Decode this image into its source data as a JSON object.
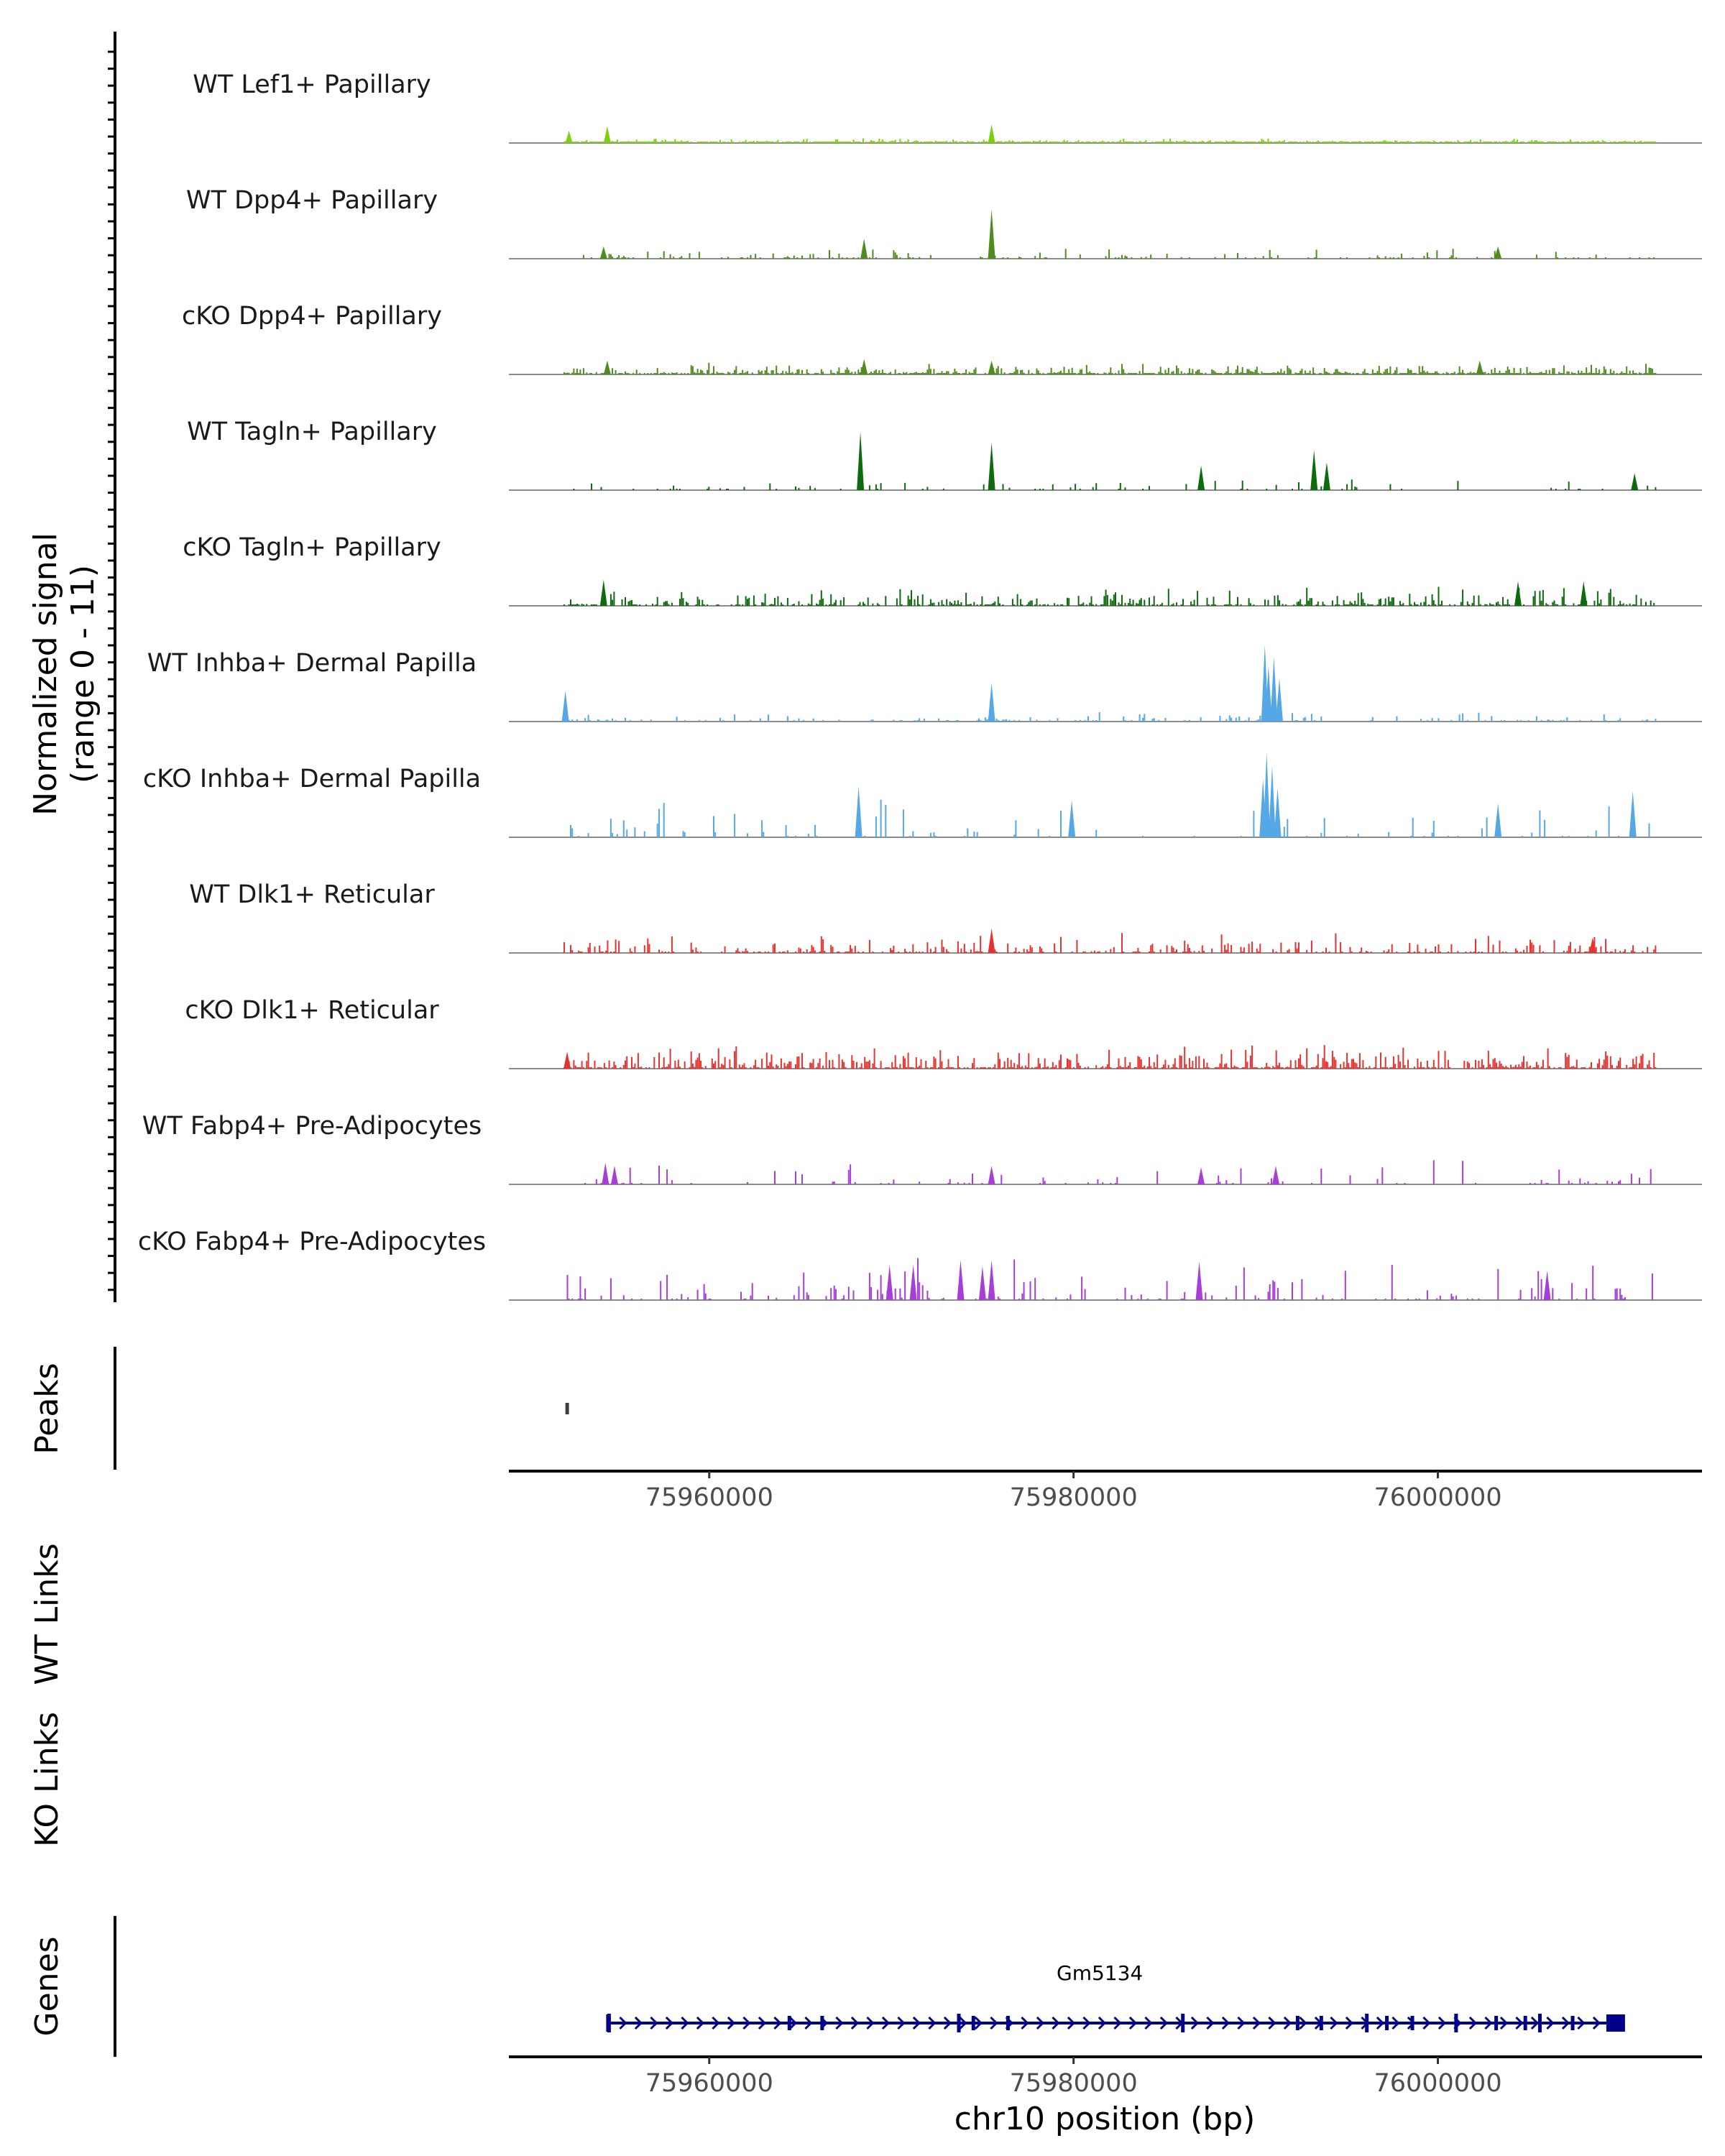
{
  "chart_data": {
    "type": "coverage",
    "title": "",
    "ylabel": "Normalized signal",
    "ylabel_range": "(range 0 - 11)",
    "y_range": [
      0,
      11
    ],
    "chromosome": "chr10",
    "xlabel": "chr10 position (bp)",
    "xlim": [
      75949000,
      76014500
    ],
    "region_start": 75952000,
    "region_end": 76012000,
    "x_ticks": [
      75960000,
      75980000,
      76000000
    ],
    "x_tick_labels": [
      "75960000",
      "75980000",
      "76000000"
    ],
    "tracks": [
      {
        "name": "WT Lef1+ Papillary",
        "color": "#7cd10f",
        "seed": 11,
        "density": 0.8,
        "scale": 0.1,
        "peaks": [
          {
            "x": 75952300,
            "v": 0.8
          },
          {
            "x": 75954400,
            "v": 1.1
          },
          {
            "x": 75975500,
            "v": 1.2
          }
        ]
      },
      {
        "name": "WT Dpp4+ Papillary",
        "color": "#4e8c1e",
        "seed": 23,
        "density": 0.18,
        "scale": 0.25,
        "peaks": [
          {
            "x": 75975500,
            "v": 3.2
          },
          {
            "x": 75968500,
            "v": 1.3
          },
          {
            "x": 75954200,
            "v": 0.8
          },
          {
            "x": 76003300,
            "v": 0.8
          }
        ]
      },
      {
        "name": "cKO Dpp4+ Papillary",
        "color": "#4e8c1e",
        "seed": 37,
        "density": 0.75,
        "scale": 0.25,
        "peaks": [
          {
            "x": 75954400,
            "v": 0.9
          },
          {
            "x": 75968500,
            "v": 1.0
          },
          {
            "x": 75975500,
            "v": 0.9
          },
          {
            "x": 76002300,
            "v": 0.9
          }
        ]
      },
      {
        "name": "WT Tagln+ Papillary",
        "color": "#0d6b0d",
        "seed": 41,
        "density": 0.12,
        "scale": 0.25,
        "peaks": [
          {
            "x": 75968300,
            "v": 3.8
          },
          {
            "x": 75975500,
            "v": 3.1
          },
          {
            "x": 75993200,
            "v": 2.6
          },
          {
            "x": 75987000,
            "v": 1.6
          },
          {
            "x": 75993900,
            "v": 1.8
          },
          {
            "x": 76010800,
            "v": 1.1
          }
        ]
      },
      {
        "name": "cKO Tagln+ Papillary",
        "color": "#0d6b0d",
        "seed": 53,
        "density": 0.5,
        "scale": 0.4,
        "peaks": [
          {
            "x": 75954200,
            "v": 1.7
          },
          {
            "x": 76008000,
            "v": 1.6
          },
          {
            "x": 76004400,
            "v": 1.6
          }
        ]
      },
      {
        "name": "WT Inhba+ Dermal Papilla",
        "color": "#56a7e6",
        "seed": 67,
        "density": 0.18,
        "scale": 0.2,
        "peaks": [
          {
            "x": 75990500,
            "v": 5.0
          },
          {
            "x": 75991000,
            "v": 4.2
          },
          {
            "x": 75990700,
            "v": 3.6
          },
          {
            "x": 75991300,
            "v": 2.8
          },
          {
            "x": 75975500,
            "v": 2.5
          },
          {
            "x": 75952100,
            "v": 2.0
          }
        ]
      },
      {
        "name": "cKO Inhba+ Dermal Papilla",
        "color": "#56a7e6",
        "seed": 79,
        "density": 0.12,
        "scale": 0.9,
        "peaks": [
          {
            "x": 75990600,
            "v": 5.5
          },
          {
            "x": 75990900,
            "v": 4.6
          },
          {
            "x": 75990400,
            "v": 3.8
          },
          {
            "x": 75991200,
            "v": 3.2
          },
          {
            "x": 75968200,
            "v": 3.3
          },
          {
            "x": 76010700,
            "v": 3.0
          },
          {
            "x": 75979900,
            "v": 2.4
          },
          {
            "x": 76003300,
            "v": 2.2
          }
        ]
      },
      {
        "name": "WT Dlk1+ Reticular",
        "color": "#e53330",
        "seed": 83,
        "density": 0.45,
        "scale": 0.45,
        "peaks": [
          {
            "x": 75975500,
            "v": 1.6
          },
          {
            "x": 76008500,
            "v": 1.0
          }
        ]
      },
      {
        "name": "cKO Dlk1+ Reticular",
        "color": "#e53330",
        "seed": 97,
        "density": 0.7,
        "scale": 0.5,
        "peaks": [
          {
            "x": 75952200,
            "v": 1.1
          }
        ]
      },
      {
        "name": "WT Fabp4+ Pre-Adipocytes",
        "color": "#a63fd6",
        "seed": 101,
        "density": 0.12,
        "scale": 0.55,
        "peaks": [
          {
            "x": 75954300,
            "v": 1.4
          },
          {
            "x": 75954800,
            "v": 1.2
          },
          {
            "x": 75991100,
            "v": 1.2
          },
          {
            "x": 75987000,
            "v": 1.1
          },
          {
            "x": 75975500,
            "v": 1.2
          }
        ]
      },
      {
        "name": "cKO Fabp4+ Pre-Adipocytes",
        "color": "#a63fd6",
        "seed": 113,
        "density": 0.22,
        "scale": 0.9,
        "peaks": [
          {
            "x": 75973800,
            "v": 2.6
          },
          {
            "x": 75975500,
            "v": 2.6
          },
          {
            "x": 75986900,
            "v": 2.5
          },
          {
            "x": 75971200,
            "v": 2.3
          },
          {
            "x": 75969900,
            "v": 2.3
          },
          {
            "x": 75975000,
            "v": 2.2
          },
          {
            "x": 76006000,
            "v": 1.9
          }
        ]
      }
    ],
    "peaks_label": "Peaks",
    "peaks_track": [
      {
        "start": 75952100,
        "end": 75952300
      }
    ],
    "wt_links_label": "WT Links",
    "ko_links_label": "KO Links",
    "genes_label": "Genes",
    "gene": {
      "name": "Gm5134",
      "start": 75954500,
      "end": 76009800,
      "strand": "+",
      "color": "#00008b",
      "exons": [
        75954500,
        75964400,
        75966200,
        75973700,
        75974500,
        75976400,
        75986000,
        75992300,
        75993600,
        75996100,
        75997200,
        75998600,
        76001000,
        76003200,
        76004800,
        76005600,
        76007400
      ]
    }
  }
}
